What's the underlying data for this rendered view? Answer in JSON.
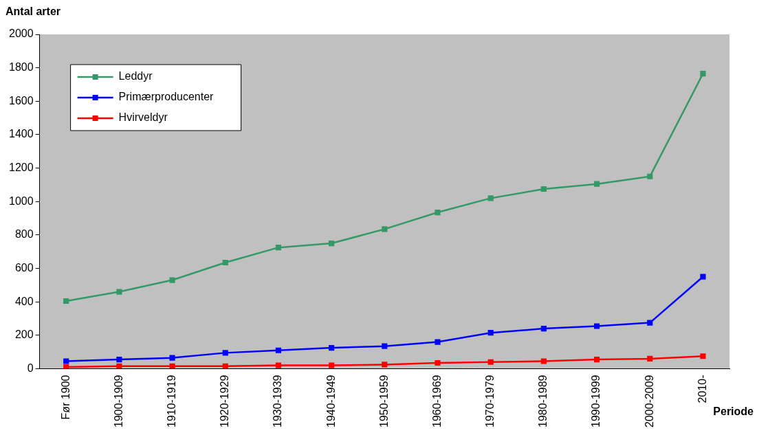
{
  "chart_data": {
    "type": "line",
    "ylabel": "Antal arter",
    "xlabel": "Periode",
    "categories": [
      "Før 1900",
      "1900-1909",
      "1910-1919",
      "1920-1929",
      "1930-1939",
      "1940-1949",
      "1950-1959",
      "1960-1969",
      "1970-1979",
      "1980-1989",
      "1990-1999",
      "2000-2009",
      "2010-"
    ],
    "series": [
      {
        "name": "Leddyr",
        "color": "#339966",
        "values": [
          405,
          460,
          530,
          635,
          725,
          750,
          835,
          935,
          1020,
          1075,
          1105,
          1150,
          1765
        ]
      },
      {
        "name": "Primærproducenter",
        "color": "#0000ff",
        "values": [
          45,
          55,
          65,
          95,
          110,
          125,
          135,
          160,
          215,
          240,
          255,
          275,
          550
        ]
      },
      {
        "name": "Hvirveldyr",
        "color": "#ff0000",
        "values": [
          10,
          15,
          15,
          15,
          20,
          20,
          25,
          35,
          40,
          45,
          55,
          60,
          75
        ]
      }
    ],
    "ylim": [
      0,
      2000
    ],
    "yticks": [
      0,
      200,
      400,
      600,
      800,
      1000,
      1200,
      1400,
      1600,
      1800,
      2000
    ],
    "grid": false,
    "legend": "top left",
    "marker": "square",
    "line_style": "solid"
  }
}
